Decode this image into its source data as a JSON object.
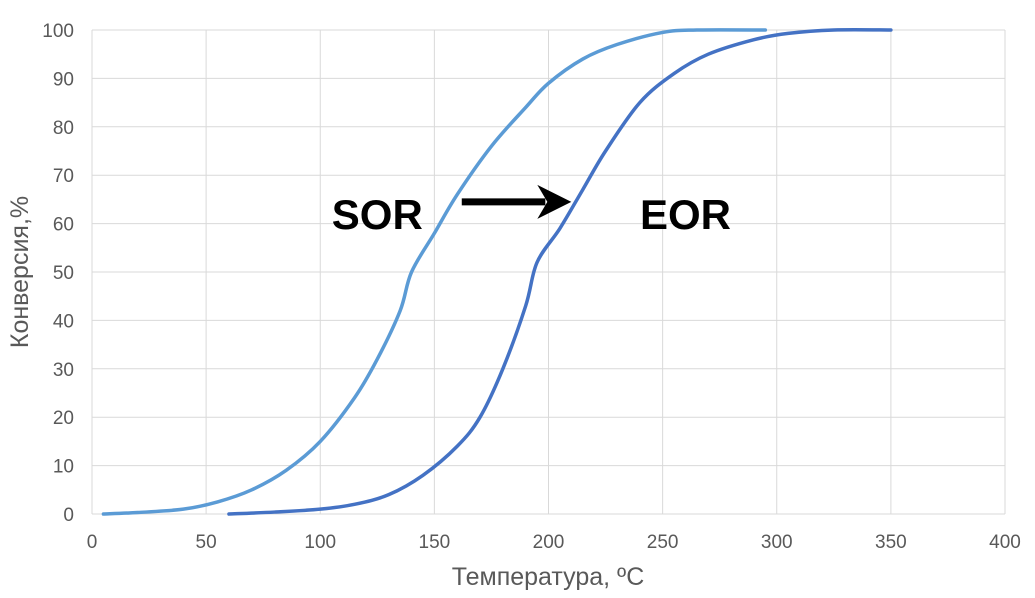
{
  "chart_data": {
    "type": "line",
    "title": "",
    "xlabel": "Температура, ºC",
    "ylabel": "Конверсия,%",
    "xlim": [
      0,
      400
    ],
    "ylim": [
      0,
      100
    ],
    "x_ticks": [
      "0",
      "50",
      "100",
      "150",
      "200",
      "250",
      "300",
      "350",
      "400"
    ],
    "y_ticks": [
      "0",
      "10",
      "20",
      "30",
      "40",
      "50",
      "60",
      "70",
      "80",
      "90",
      "100"
    ],
    "grid": true,
    "legend": "none",
    "series": [
      {
        "color": "#5b9bd5",
        "points": [
          [
            5,
            0
          ],
          [
            20,
            0.3
          ],
          [
            40,
            1
          ],
          [
            55,
            2.5
          ],
          [
            70,
            5
          ],
          [
            85,
            9
          ],
          [
            100,
            15
          ],
          [
            115,
            24
          ],
          [
            125,
            32
          ],
          [
            135,
            42
          ],
          [
            140,
            50
          ],
          [
            150,
            58
          ],
          [
            160,
            66
          ],
          [
            175,
            76
          ],
          [
            190,
            84
          ],
          [
            200,
            89
          ],
          [
            215,
            94
          ],
          [
            230,
            97
          ],
          [
            250,
            99.5
          ],
          [
            265,
            100
          ],
          [
            295,
            100
          ]
        ]
      },
      {
        "color": "#4472c4",
        "points": [
          [
            60,
            0
          ],
          [
            80,
            0.4
          ],
          [
            100,
            1
          ],
          [
            115,
            2
          ],
          [
            130,
            4
          ],
          [
            145,
            8
          ],
          [
            160,
            14
          ],
          [
            170,
            20
          ],
          [
            180,
            30
          ],
          [
            190,
            43
          ],
          [
            195,
            52
          ],
          [
            205,
            59
          ],
          [
            215,
            67
          ],
          [
            225,
            75
          ],
          [
            240,
            85
          ],
          [
            255,
            91
          ],
          [
            270,
            95
          ],
          [
            290,
            98
          ],
          [
            305,
            99.3
          ],
          [
            325,
            100
          ],
          [
            350,
            100
          ]
        ]
      }
    ],
    "annotations": [
      {
        "text": "SOR",
        "x": 125,
        "y": 62
      },
      {
        "text": "EOR",
        "x": 260,
        "y": 62
      }
    ],
    "arrow": {
      "from": [
        162,
        64.5
      ],
      "to": [
        210,
        64.5
      ]
    }
  }
}
